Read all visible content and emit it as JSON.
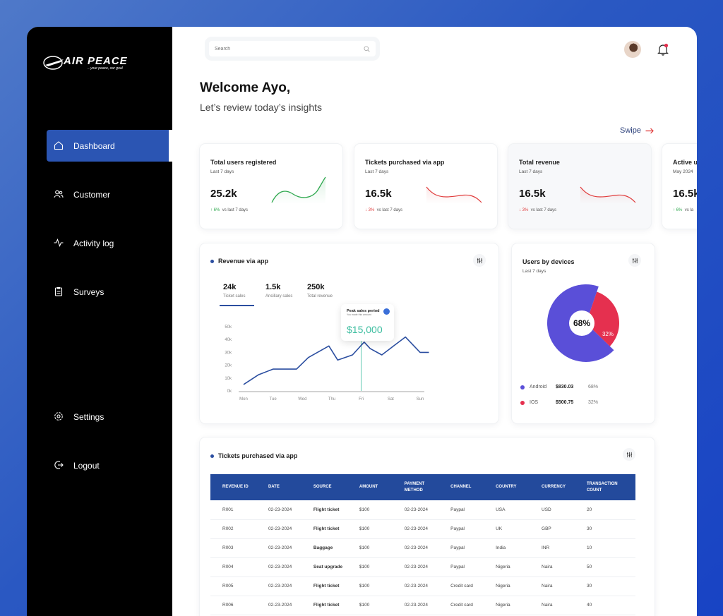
{
  "brand": {
    "name": "AIR PEACE",
    "tagline": "...your peace, our goal"
  },
  "sidebar": {
    "items": [
      {
        "label": "Dashboard",
        "icon": "home-icon",
        "active": true
      },
      {
        "label": "Customer",
        "icon": "users-icon"
      },
      {
        "label": "Activity log",
        "icon": "activity-icon"
      },
      {
        "label": "Surveys",
        "icon": "clipboard-icon"
      }
    ],
    "bottom": [
      {
        "label": "Settings",
        "icon": "gear-icon"
      },
      {
        "label": "Logout",
        "icon": "logout-icon"
      }
    ]
  },
  "header": {
    "search_placeholder": "Search"
  },
  "welcome": {
    "title": "Welcome Ayo,",
    "subtitle": "Let’s review today’s insights",
    "swipe": "Swipe"
  },
  "stats": [
    {
      "title": "Total users registered",
      "period": "Last 7 days",
      "value": "25.2k",
      "delta": "6%",
      "delta_dir": "up",
      "delta_note": "vs last 7 days"
    },
    {
      "title": "Tickets purchased via app",
      "period": "Last 7 days",
      "value": "16.5k",
      "delta": "3%",
      "delta_dir": "down",
      "delta_note": "vs last 7 days"
    },
    {
      "title": "Total revenue",
      "period": "Last 7 days",
      "value": "16.5k",
      "delta": "3%",
      "delta_dir": "down",
      "delta_note": "vs last 7 days"
    },
    {
      "title": "Active u",
      "period": "May 2024",
      "value": "16.5k",
      "delta": "6%",
      "delta_dir": "up",
      "delta_note": "vs la"
    }
  ],
  "revenue": {
    "title": "Revenue via app",
    "tabs": [
      {
        "value": "24k",
        "label": "Ticket sales"
      },
      {
        "value": "1.5k",
        "label": "Ancillary sales"
      },
      {
        "value": "250k",
        "label": "Total revenue"
      }
    ],
    "tooltip": {
      "title": "Peak sales period",
      "note": "You made this amount",
      "value": "$15,000"
    }
  },
  "chart_data": [
    {
      "type": "line",
      "title": "Revenue via app",
      "categories": [
        "Mon",
        "Tue",
        "Wed",
        "Thu",
        "Fri",
        "Sat",
        "Sun"
      ],
      "y_ticks": [
        "50k",
        "40k",
        "30k",
        "20k",
        "10k",
        "0k"
      ],
      "ylim": [
        0,
        50000
      ],
      "x": [
        0,
        0.5,
        1,
        1.8,
        2.2,
        2.9,
        3.2,
        3.7,
        4.1,
        4.3,
        4.7,
        5.1,
        5.5,
        6.0,
        6.3
      ],
      "values": [
        5000,
        12500,
        17000,
        17000,
        26000,
        35000,
        24000,
        28000,
        38000,
        33000,
        28000,
        35000,
        42000,
        30000,
        30000
      ],
      "marker_category": "Fri",
      "color": "#2b4ea0"
    },
    {
      "type": "pie",
      "title": "Users by devices",
      "period": "Last 7 days",
      "labels": [
        "Android",
        "IOS"
      ],
      "values": [
        68,
        32
      ],
      "amounts": [
        "$830.03",
        "$500.75"
      ],
      "percent_labels": [
        "68%",
        "32%"
      ],
      "colors": [
        "#5a4fd8",
        "#e5304f"
      ]
    }
  ],
  "tickets": {
    "title": "Tickets purchased via app",
    "columns": [
      "REVENUE ID",
      "DATE",
      "SOURCE",
      "AMOUNT",
      "PAYMENT METHOD",
      "CHANNEL",
      "COUNTRY",
      "CURRENCY",
      "TRANSACTION COUNT"
    ],
    "rows": [
      [
        "R001",
        "02-23-2024",
        "Flight ticket",
        "$100",
        "02-23-2024",
        "Paypal",
        "USA",
        "USD",
        "20"
      ],
      [
        "R002",
        "02-23-2024",
        "Flight ticket",
        "$100",
        "02-23-2024",
        "Paypal",
        "UK",
        "GBP",
        "30"
      ],
      [
        "R003",
        "02-23-2024",
        "Baggage",
        "$100",
        "02-23-2024",
        "Paypal",
        "India",
        "INR",
        "10"
      ],
      [
        "R004",
        "02-23-2024",
        "Seat upgrade",
        "$100",
        "02-23-2024",
        "Paypal",
        "Nigeria",
        "Naira",
        "50"
      ],
      [
        "R005",
        "02-23-2024",
        "Flight ticket",
        "$100",
        "02-23-2024",
        "Credit card",
        "Nigeria",
        "Naira",
        "30"
      ],
      [
        "R006",
        "02-23-2024",
        "Flight ticket",
        "$100",
        "02-23-2024",
        "Credit card",
        "Nigeria",
        "Naira",
        "40"
      ]
    ]
  },
  "colors": {
    "accent": "#2b55b3",
    "table_header": "#234a9c",
    "up": "#2ea84e",
    "down": "#e03c3c"
  }
}
